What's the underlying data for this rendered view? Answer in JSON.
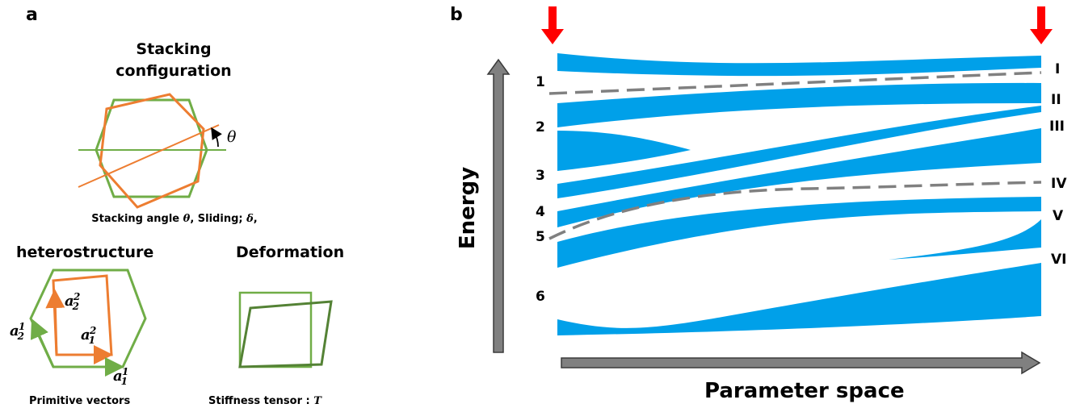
{
  "panel_a": {
    "letter": "a",
    "stacking": {
      "title_line1": "Stacking",
      "title_line2": "configuration",
      "theta_symbol": "θ",
      "caption_prefix": "Stacking angle ",
      "caption_theta": "θ",
      "caption_middle": ", Sliding; ",
      "caption_delta": "δ",
      "caption_suffix": ","
    },
    "heterostructure": {
      "title": "heterostructure",
      "vec_base": "a",
      "a2_2_sub": "2",
      "a2_2_sup": "2",
      "a1_2_sub": "1",
      "a1_2_sup": "2",
      "a2_1_sub": "2",
      "a2_1_sup": "1",
      "a1_1_sub": "1",
      "a1_1_sup": "1",
      "caption": "Primitive vectors"
    },
    "deformation": {
      "title": "Deformation",
      "caption_prefix": "Stiffness tensor : ",
      "caption_symbol": "T"
    },
    "colors": {
      "green": "#70ad47",
      "orange": "#ed7d31",
      "dark_green": "#548235"
    }
  },
  "panel_b": {
    "letter": "b",
    "y_axis_label": "Energy",
    "x_axis_label": "Parameter space",
    "left_levels": [
      "1",
      "2",
      "3",
      "4",
      "5",
      "6"
    ],
    "right_levels": [
      "I",
      "II",
      "III",
      "IV",
      "V",
      "VI"
    ],
    "colors": {
      "band": "#00a0e9",
      "arrow": "#ff0000",
      "axis": "#808080",
      "dashed": "#808080"
    }
  }
}
